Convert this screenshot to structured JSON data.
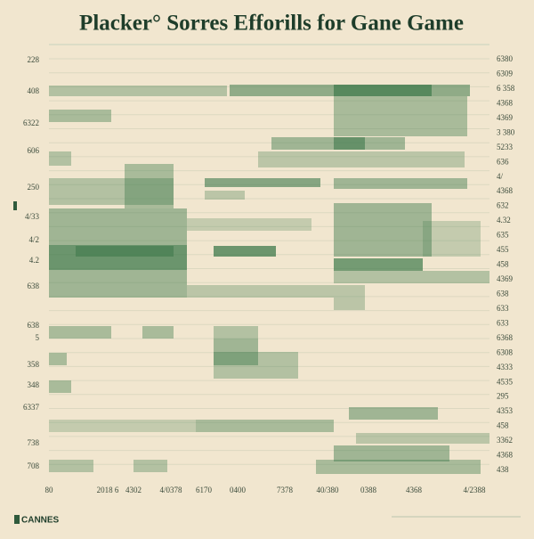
{
  "header": {
    "title": "Placker° Sorres  Efforills for Gane Game"
  },
  "left_labels": [
    "228",
    "408",
    "6322",
    "606",
    "250",
    "4/33",
    "4/2",
    "4.2",
    "638",
    "638",
    "5",
    "358",
    "348",
    "6337",
    "738",
    "708"
  ],
  "right_labels": [
    "6380",
    "6309",
    "6 358",
    "4368",
    "4369",
    "3 380",
    "5233",
    "636",
    "4/",
    "4368",
    "632",
    "4.32",
    "635",
    "455",
    "458",
    "4369",
    "638",
    "633",
    "633",
    "6368",
    "6308",
    "4333",
    "4535",
    "295",
    "4353",
    "458",
    "3362",
    "4368",
    "438"
  ],
  "bottom_labels": [
    "80",
    "2018 6",
    "4302",
    "4/0378",
    "6170",
    "0400",
    "7378",
    "40/380",
    "0388",
    "4368",
    "4/2388"
  ],
  "footer": {
    "logo": "CANNES"
  }
}
